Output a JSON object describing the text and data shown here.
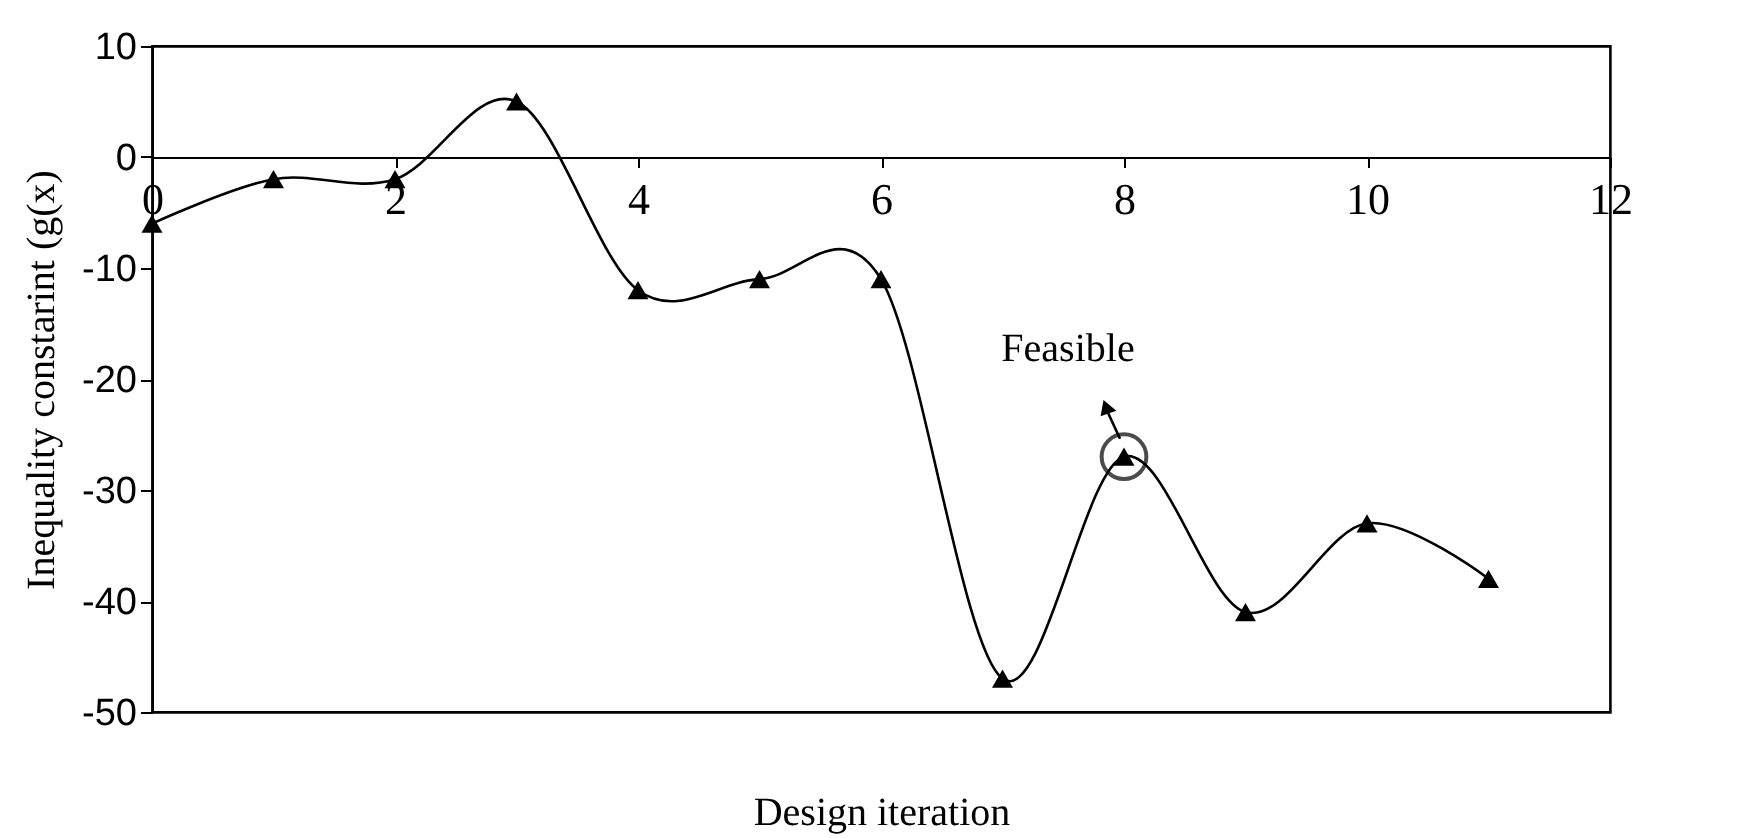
{
  "chart_data": {
    "type": "line",
    "xlabel": "Design iteration",
    "ylabel": "Inequality constarint (g(x)",
    "x": [
      0,
      1,
      2,
      3,
      4,
      5,
      6,
      7,
      8,
      9,
      10,
      11
    ],
    "series": [
      {
        "color": "#000000",
        "values": [
          -6,
          -2,
          -2,
          5,
          -12,
          -11,
          -11,
          -47,
          -27,
          -41,
          -33,
          -38
        ]
      }
    ],
    "xlim": [
      0,
      12
    ],
    "xticks": [
      0,
      2,
      4,
      6,
      8,
      10,
      12
    ],
    "ylim": [
      -50,
      10
    ],
    "yticks": [
      -50,
      -40,
      -30,
      -20,
      -10,
      0,
      10
    ],
    "marker": "triangle",
    "line_style": "solid",
    "grid": false,
    "annotations": [
      {
        "text": "Feasible",
        "x": 8,
        "y": -27
      }
    ]
  }
}
